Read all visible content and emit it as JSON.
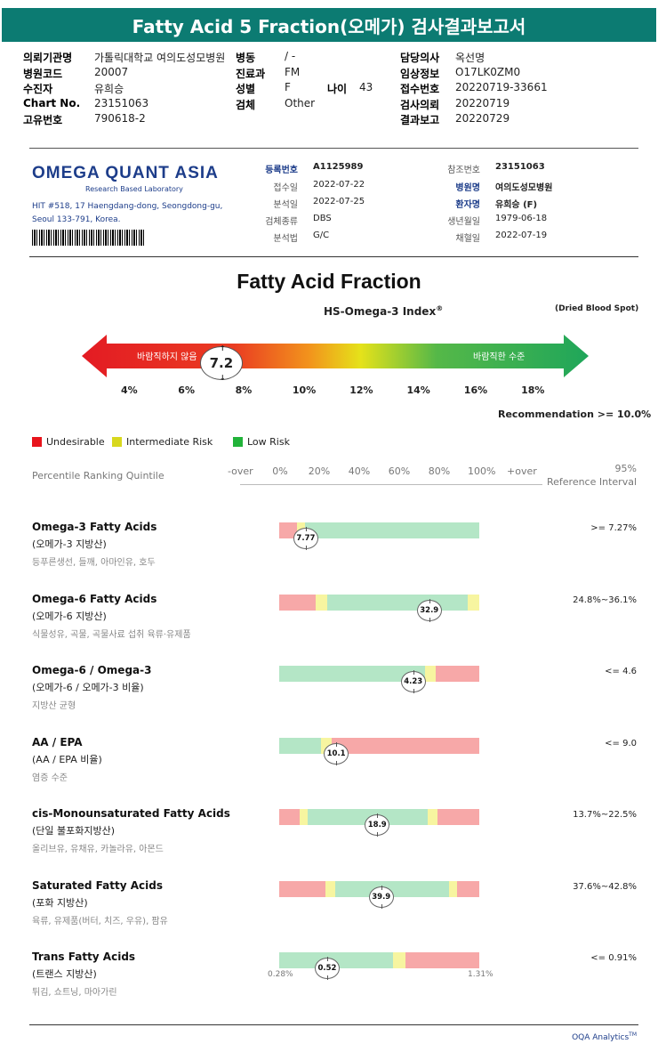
{
  "title": "Fatty Acid 5 Fraction(오메가) 검사결과보고서",
  "header": {
    "rows": [
      {
        "l1": "의뢰기관명",
        "v1": "가톨릭대학교 여의도성모병원",
        "l2": "병동",
        "v2": "/ -",
        "l3": "담당의사",
        "v3": "옥선명"
      },
      {
        "l1": "병원코드",
        "v1": "20007",
        "l2": "진료과",
        "v2": "FM",
        "l3": "임상정보",
        "v3": "O17LK0ZM0"
      },
      {
        "l1": "수진자",
        "v1": "유희승",
        "l2": "성별",
        "v2": "F",
        "l2b": "나이",
        "v2b": "43",
        "l3": "접수번호",
        "v3": "20220719-33661"
      },
      {
        "l1": "Chart No.",
        "v1": "23151063",
        "l2": "검체",
        "v2": "Other",
        "l3": "검사의뢰",
        "v3": "20220719"
      },
      {
        "l1": "고유번호",
        "v1": "790618-2",
        "l3": "결과보고",
        "v3": "20220729"
      }
    ]
  },
  "lab": {
    "logo": "OMEGA QUANT ASIA",
    "logo_sub": "Research Based Laboratory",
    "addr1": "HIT #518, 17 Haengdang-dong, Seongdong-gu,",
    "addr2": "Seoul 133-791, Korea."
  },
  "info": {
    "reg_no_label": "등록번호",
    "reg_no": "A1125989",
    "received_label": "접수일",
    "received": "2022-07-22",
    "analyzed_label": "분석일",
    "analyzed": "2022-07-25",
    "sample_label": "검체종류",
    "sample": "DBS",
    "method_label": "분석법",
    "method": "G/C",
    "ref_no_label": "참조번호",
    "ref_no": "23151063",
    "hospital_label": "병원명",
    "hospital": "여의도성모병원",
    "patient_label": "환자명",
    "patient": "유희승 (F)",
    "dob_label": "생년월일",
    "dob": "1979-06-18",
    "collected_label": "채혈일",
    "collected": "2022-07-19"
  },
  "section_title": "Fatty Acid Fraction",
  "index": {
    "label": "HS-Omega-3 Index",
    "sup": "®",
    "dbs": "(Dried Blood Spot)",
    "value": "7.2",
    "value_num": 7.2,
    "undesirable_text": "바람직하지 않음",
    "desirable_text": "바람직한 수준",
    "ticks": [
      "4%",
      "6%",
      "8%",
      "10%",
      "12%",
      "14%",
      "16%",
      "18%"
    ],
    "recommendation": "Recommendation  >= 10.0%"
  },
  "legend": [
    {
      "label": "Undesirable",
      "color": "#e8141c"
    },
    {
      "label": "Intermediate Risk",
      "color": "#d8d81e"
    },
    {
      "label": "Low Risk",
      "color": "#21b33a"
    }
  ],
  "percentile": {
    "label": "Percentile Ranking Quintile",
    "ticks": [
      "-over",
      "0%",
      "20%",
      "40%",
      "60%",
      "80%",
      "100%",
      "+over"
    ],
    "ref_head1": "95%",
    "ref_head2": "Reference Interval"
  },
  "colors": {
    "red": "#f7a8a8",
    "yellow": "#f7f5a0",
    "green": "#b4e6c6"
  },
  "fatty_acids": [
    {
      "name": "Omega-3 Fatty Acids",
      "kr": "(오메가-3 지방산)",
      "desc": "등푸른생선, 들깨, 아마인유, 호두",
      "ref": ">= 7.27%",
      "value": "7.77",
      "segs": [
        [
          "red",
          0,
          0.09
        ],
        [
          "yellow",
          0.09,
          0.13
        ],
        [
          "green",
          0.13,
          1.0
        ]
      ],
      "marker_pos": 0.133
    },
    {
      "name": "Omega-6 Fatty Acids",
      "kr": "(오메가-6 지방산)",
      "desc": "식물성유, 곡물, 곡물사료 섭취 육류·유제품",
      "ref": "24.8%~36.1%",
      "value": "32.9",
      "segs": [
        [
          "red",
          0,
          0.18
        ],
        [
          "yellow",
          0.18,
          0.24
        ],
        [
          "green",
          0.24,
          0.94
        ],
        [
          "yellow",
          0.94,
          1.0
        ]
      ],
      "marker_pos": 0.75
    },
    {
      "name": "Omega-6 / Omega-3",
      "kr": "(오메가-6 / 오메가-3 비율)",
      "desc": "지방산 균형",
      "ref": "<= 4.6",
      "value": "4.23",
      "segs": [
        [
          "green",
          0,
          0.73
        ],
        [
          "yellow",
          0.73,
          0.78
        ],
        [
          "red",
          0.78,
          1.0
        ]
      ],
      "marker_pos": 0.67
    },
    {
      "name": "AA / EPA",
      "kr": "(AA / EPA 비율)",
      "desc": "염증 수준",
      "ref": "<= 9.0",
      "value": "10.1",
      "segs": [
        [
          "green",
          0,
          0.21
        ],
        [
          "yellow",
          0.21,
          0.26
        ],
        [
          "red",
          0.26,
          1.0
        ]
      ],
      "marker_pos": 0.285
    },
    {
      "name": "cis-Monounsaturated Fatty Acids",
      "kr": "(단일 불포화지방산)",
      "desc": "올리브유, 유채유, 카놀라유, 아몬드",
      "ref": "13.7%~22.5%",
      "value": "18.9",
      "segs": [
        [
          "red",
          0,
          0.1
        ],
        [
          "yellow",
          0.1,
          0.14
        ],
        [
          "green",
          0.14,
          0.74
        ],
        [
          "yellow",
          0.74,
          0.79
        ],
        [
          "red",
          0.79,
          1.0
        ]
      ],
      "marker_pos": 0.49
    },
    {
      "name": "Saturated Fatty Acids",
      "kr": "(포화 지방산)",
      "desc": "육류, 유제품(버터, 치즈, 우유), 팜유",
      "ref": "37.6%~42.8%",
      "value": "39.9",
      "segs": [
        [
          "red",
          0,
          0.23
        ],
        [
          "yellow",
          0.23,
          0.28
        ],
        [
          "green",
          0.28,
          0.85
        ],
        [
          "yellow",
          0.85,
          0.89
        ],
        [
          "red",
          0.89,
          1.0
        ]
      ],
      "marker_pos": 0.51
    },
    {
      "name": "Trans Fatty Acids",
      "kr": "(트랜스 지방산)",
      "desc": "튀김, 쇼트닝, 마아가린",
      "ref": "<= 0.91%",
      "value": "0.52",
      "segs": [
        [
          "green",
          0,
          0.57
        ],
        [
          "yellow",
          0.57,
          0.63
        ],
        [
          "red",
          0.63,
          1.0
        ]
      ],
      "marker_pos": 0.24,
      "min_label": "0.28%",
      "max_label": "1.31%"
    }
  ],
  "footer": "OQA Analytics",
  "footer_sup": "TM"
}
